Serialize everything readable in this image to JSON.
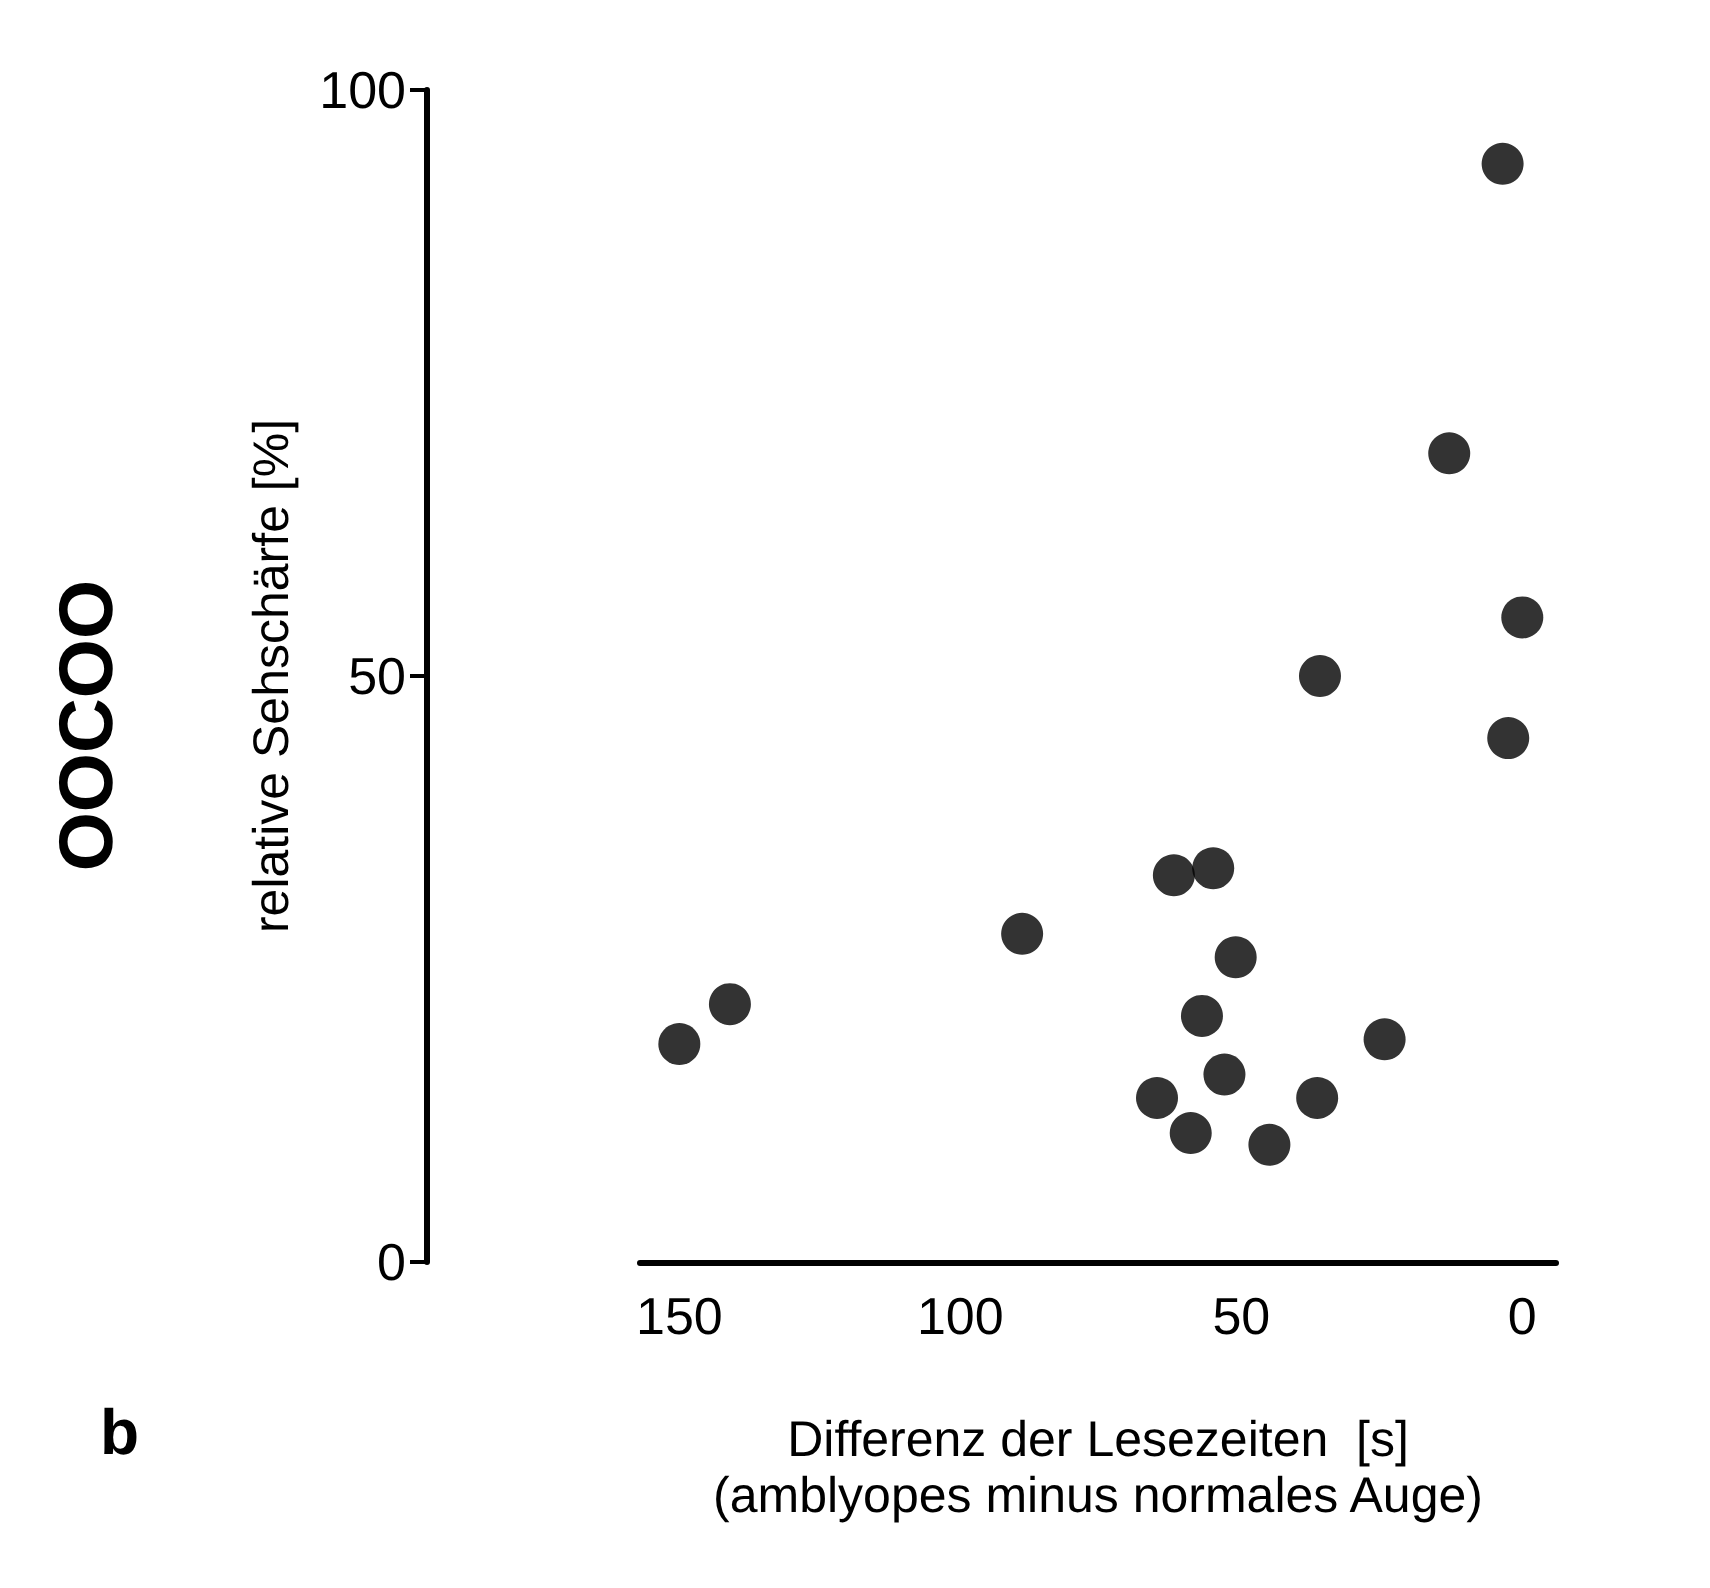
{
  "chart_data": {
    "type": "scatter",
    "xlabel": "Differenz der Lesezeiten  [s]\n(amblyopes minus normales Auge)",
    "ylabel": "relative Sehschärfe [%]",
    "annotations": [
      "OOCOO",
      "b"
    ],
    "x": [
      3.5,
      13,
      0,
      36,
      2.5,
      62,
      55,
      89,
      51,
      141,
      57,
      150,
      24.5,
      53,
      65,
      36.5,
      59,
      45
    ],
    "series": [
      {
        "color": "#000000",
        "values": [
          93.7,
          69,
          55,
          50,
          44.7,
          33,
          33.6,
          28,
          26,
          22,
          21,
          18.6,
          19,
          16,
          14,
          14,
          11,
          10
        ]
      }
    ],
    "xlim": [
      157,
      -6
    ],
    "xticks": [
      150,
      100,
      50,
      0
    ],
    "ylim": [
      0,
      100
    ],
    "yticks": [
      0,
      50,
      100
    ],
    "marker": "circle"
  }
}
